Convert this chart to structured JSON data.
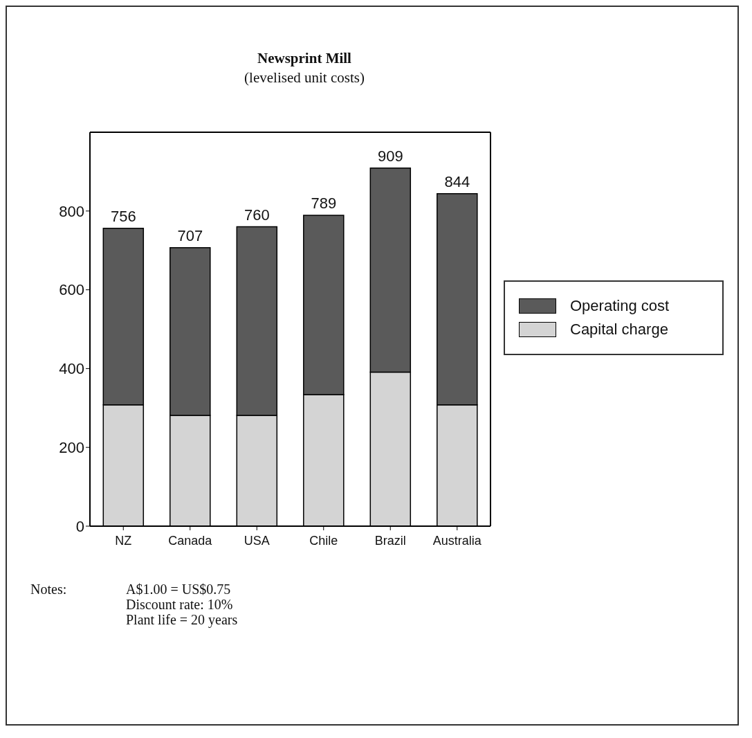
{
  "chart_data": {
    "type": "bar",
    "title": "Newsprint Mill",
    "subtitle": "(levelised unit costs)",
    "categories": [
      "NZ",
      "Canada",
      "USA",
      "Chile",
      "Brazil",
      "Australia"
    ],
    "series": [
      {
        "name": "Capital charge",
        "color": "#d4d4d4",
        "values": [
          308,
          281,
          281,
          334,
          391,
          308
        ]
      },
      {
        "name": "Operating cost",
        "color": "#5a5a5a",
        "values": [
          448,
          426,
          479,
          455,
          518,
          536
        ]
      }
    ],
    "stacked": true,
    "totals": [
      "756",
      "707",
      "760",
      "789",
      "909",
      "844"
    ],
    "ylim": [
      0,
      1000
    ],
    "yticks": [
      0,
      200,
      400,
      600,
      800
    ],
    "legend": "right",
    "annotations": [
      "Notes:",
      "A$1.00 = US$0.75",
      "Discount rate: 10%",
      "Plant life = 20 years"
    ]
  }
}
